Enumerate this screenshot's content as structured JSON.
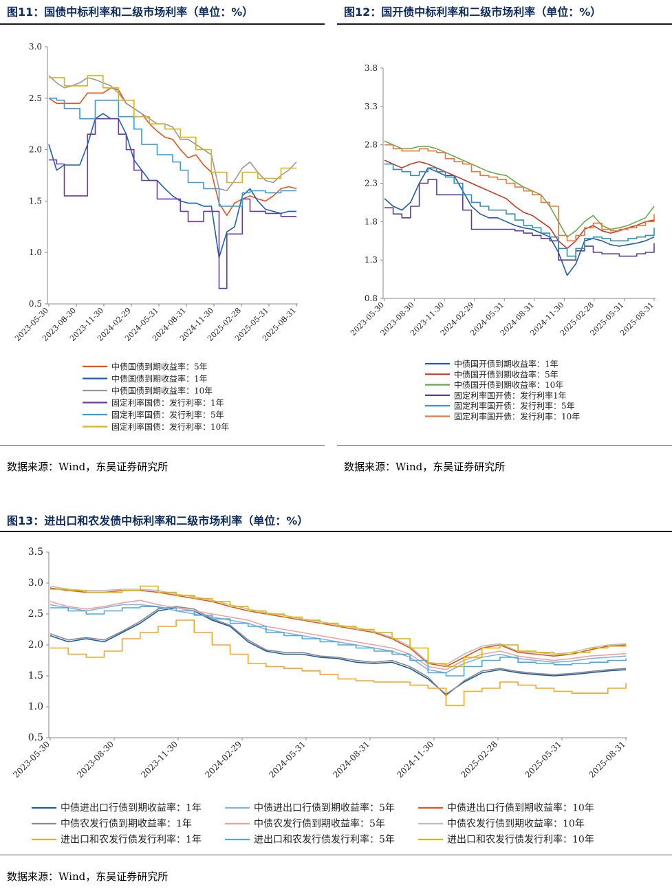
{
  "figures": [
    {
      "id": "fig11",
      "title": "图11：国债中标利率和二级市场利率（单位：%）",
      "source": "数据来源：Wind，东吴证券研究所",
      "chart_data": {
        "type": "line",
        "x_ticks": [
          "2023-05-30",
          "2023-08-30",
          "2023-11-30",
          "2024-02-29",
          "2024-05-31",
          "2024-08-31",
          "2024-11-30",
          "2025-02-28",
          "2025-05-31",
          "2025-08-31"
        ],
        "ylim": [
          0.5,
          3.0
        ],
        "y_ticks": [
          0.5,
          1.0,
          1.5,
          2.0,
          2.5,
          3.0
        ],
        "y_tick_labels": [
          "0.5",
          "1.0",
          "1.5",
          "2.0",
          "2.5",
          "3.0"
        ],
        "series": [
          {
            "name": "中债国债到期收益率：5年",
            "color": "#e2541f",
            "step": false,
            "values": [
              2.5,
              2.45,
              2.45,
              2.45,
              2.45,
              2.55,
              2.55,
              2.55,
              2.6,
              2.58,
              2.45,
              2.4,
              2.35,
              2.25,
              2.18,
              2.12,
              2.1,
              2.0,
              1.92,
              1.95,
              1.85,
              1.78,
              1.48,
              1.36,
              1.48,
              1.52,
              1.55,
              1.52,
              1.5,
              1.55,
              1.62,
              1.64,
              1.62
            ]
          },
          {
            "name": "中债国债到期收益率：1年",
            "color": "#1b5fb0",
            "step": false,
            "values": [
              2.05,
              1.8,
              1.85,
              1.85,
              1.85,
              2.05,
              2.3,
              2.35,
              2.3,
              2.3,
              2.15,
              1.9,
              1.8,
              1.7,
              1.7,
              1.62,
              1.55,
              1.5,
              1.48,
              1.48,
              1.45,
              1.45,
              0.95,
              1.2,
              1.25,
              1.55,
              1.62,
              1.5,
              1.42,
              1.4,
              1.38,
              1.4,
              1.4
            ]
          },
          {
            "name": "中债国债到期收益率：10年",
            "color": "#999999",
            "step": false,
            "values": [
              2.72,
              2.65,
              2.6,
              2.62,
              2.65,
              2.7,
              2.68,
              2.65,
              2.62,
              2.55,
              2.45,
              2.4,
              2.35,
              2.3,
              2.25,
              2.25,
              2.22,
              2.1,
              2.1,
              2.05,
              2.0,
              1.95,
              1.62,
              1.6,
              1.7,
              1.82,
              1.88,
              1.78,
              1.7,
              1.68,
              1.75,
              1.8,
              1.88
            ]
          },
          {
            "name": "固定利率国债：发行利率：1年",
            "color": "#6b3aa0",
            "step": true,
            "values": [
              1.9,
              1.86,
              1.55,
              1.55,
              1.55,
              2.15,
              2.3,
              2.3,
              2.3,
              2.15,
              2.0,
              1.8,
              1.7,
              1.7,
              1.52,
              1.52,
              1.52,
              1.4,
              1.3,
              1.3,
              1.4,
              1.4,
              0.65,
              1.18,
              1.18,
              1.52,
              1.4,
              1.4,
              1.38,
              1.38,
              1.35,
              1.35,
              1.35
            ]
          },
          {
            "name": "固定利率国债：发行利率：5年",
            "color": "#3b9ad8",
            "step": true,
            "values": [
              2.5,
              2.48,
              2.4,
              2.4,
              2.3,
              2.3,
              2.48,
              2.48,
              2.48,
              2.32,
              2.32,
              2.2,
              2.05,
              2.05,
              1.95,
              1.95,
              1.88,
              1.8,
              1.68,
              1.68,
              1.62,
              1.62,
              1.45,
              1.45,
              1.45,
              1.58,
              1.6,
              1.6,
              1.58,
              1.58,
              1.6,
              1.6,
              1.6
            ]
          },
          {
            "name": "固定利率国债：发行利率：10年",
            "color": "#d6b417",
            "step": true,
            "values": [
              2.7,
              2.7,
              2.62,
              2.62,
              2.62,
              2.72,
              2.72,
              2.6,
              2.6,
              2.48,
              2.48,
              2.32,
              2.32,
              2.25,
              2.25,
              2.2,
              2.2,
              2.12,
              2.12,
              2.0,
              2.0,
              1.78,
              1.78,
              1.68,
              1.68,
              1.78,
              1.78,
              1.72,
              1.72,
              1.72,
              1.82,
              1.82,
              1.82
            ]
          }
        ]
      }
    },
    {
      "id": "fig12",
      "title": "图12：国开债中标利率和二级市场利率（单位：%）",
      "source": "数据来源：Wind，东吴证券研究所",
      "chart_data": {
        "type": "line",
        "x_ticks": [
          "2023-05-30",
          "2023-08-30",
          "2023-11-30",
          "2024-02-29",
          "2024-05-31",
          "2024-08-31",
          "2024-11-30",
          "2025-02-28",
          "2025-05-31",
          "2025-08-31"
        ],
        "ylim": [
          0.8,
          3.8
        ],
        "y_ticks": [
          0.8,
          1.3,
          1.8,
          2.3,
          2.8,
          3.3,
          3.8
        ],
        "y_tick_labels": [
          "0.8",
          "1.3",
          "1.8",
          "2.3",
          "2.8",
          "3.3",
          "3.8"
        ],
        "series": [
          {
            "name": "中债国开债到期收益率：1年",
            "color": "#1f5b9e",
            "step": false,
            "values": [
              2.1,
              2.0,
              1.95,
              2.05,
              2.3,
              2.5,
              2.45,
              2.4,
              2.4,
              2.2,
              2.0,
              1.9,
              1.85,
              1.85,
              1.8,
              1.75,
              1.72,
              1.7,
              1.65,
              1.6,
              1.4,
              1.1,
              1.25,
              1.55,
              1.58,
              1.55,
              1.5,
              1.48,
              1.5,
              1.52,
              1.55,
              1.6
            ]
          },
          {
            "name": "中债国开债到期收益率：5年",
            "color": "#c0392b",
            "step": false,
            "values": [
              2.6,
              2.55,
              2.5,
              2.55,
              2.58,
              2.55,
              2.5,
              2.45,
              2.4,
              2.35,
              2.3,
              2.25,
              2.2,
              2.15,
              2.1,
              2.0,
              1.92,
              1.88,
              1.8,
              1.72,
              1.55,
              1.45,
              1.55,
              1.7,
              1.75,
              1.68,
              1.65,
              1.68,
              1.72,
              1.75,
              1.8,
              1.82
            ]
          },
          {
            "name": "中债国开债到期收益率：10年",
            "color": "#6aa84f",
            "step": false,
            "values": [
              2.85,
              2.8,
              2.75,
              2.75,
              2.78,
              2.78,
              2.75,
              2.7,
              2.65,
              2.6,
              2.55,
              2.5,
              2.45,
              2.42,
              2.4,
              2.32,
              2.25,
              2.2,
              2.15,
              2.0,
              1.8,
              1.6,
              1.68,
              1.8,
              1.88,
              1.75,
              1.7,
              1.72,
              1.75,
              1.8,
              1.85,
              2.0
            ]
          },
          {
            "name": "固定利率国开债：发行利率1年",
            "color": "#5b3e91",
            "step": true,
            "values": [
              1.98,
              1.9,
              1.85,
              2.0,
              2.3,
              2.35,
              2.15,
              2.15,
              2.15,
              1.95,
              1.7,
              1.7,
              1.7,
              1.7,
              1.7,
              1.68,
              1.65,
              1.62,
              1.58,
              1.55,
              1.3,
              1.3,
              1.42,
              1.48,
              1.4,
              1.38,
              1.38,
              1.35,
              1.35,
              1.38,
              1.4,
              1.52
            ]
          },
          {
            "name": "固定利率国开债：发行利率：5年",
            "color": "#2f8fb5",
            "step": true,
            "values": [
              2.55,
              2.48,
              2.45,
              2.4,
              2.45,
              2.5,
              2.45,
              2.38,
              2.3,
              2.15,
              2.05,
              2.0,
              1.95,
              1.95,
              1.9,
              1.82,
              1.75,
              1.72,
              1.65,
              1.6,
              1.45,
              1.35,
              1.45,
              1.58,
              1.6,
              1.58,
              1.55,
              1.55,
              1.58,
              1.6,
              1.62,
              1.72
            ]
          },
          {
            "name": "固定利率国开债：发行利率：10年",
            "color": "#e8763a",
            "step": true,
            "values": [
              2.8,
              2.75,
              2.72,
              2.72,
              2.75,
              2.72,
              2.7,
              2.62,
              2.58,
              2.55,
              2.45,
              2.4,
              2.38,
              2.35,
              2.3,
              2.25,
              2.2,
              2.15,
              2.05,
              2.0,
              1.62,
              1.55,
              1.62,
              1.72,
              1.78,
              1.7,
              1.68,
              1.7,
              1.72,
              1.75,
              1.8,
              1.9
            ]
          }
        ]
      }
    },
    {
      "id": "fig13",
      "title": "图13：进出口和农发债中标利率和二级市场利率（单位：%）",
      "source": "数据来源：Wind，东吴证券研究所",
      "chart_data": {
        "type": "line",
        "x_ticks": [
          "2023-05-30",
          "2023-08-30",
          "2023-11-30",
          "2024-02-29",
          "2024-05-31",
          "2024-08-31",
          "2024-11-30",
          "2025-02-28",
          "2025-05-31",
          "2025-08-31"
        ],
        "ylim": [
          0.5,
          3.5
        ],
        "y_ticks": [
          0.5,
          1.0,
          1.5,
          2.0,
          2.5,
          3.0,
          3.5
        ],
        "y_tick_labels": [
          "0.5",
          "1.0",
          "1.5",
          "2.0",
          "2.5",
          "3.0",
          "3.5"
        ],
        "series": [
          {
            "name": "中债进出口行债到期收益率：1年",
            "color": "#1f5b9e",
            "step": false,
            "values": [
              2.15,
              2.05,
              2.1,
              2.05,
              2.2,
              2.35,
              2.55,
              2.6,
              2.55,
              2.4,
              2.3,
              2.05,
              1.9,
              1.85,
              1.85,
              1.8,
              1.78,
              1.72,
              1.7,
              1.72,
              1.62,
              1.45,
              1.2,
              1.4,
              1.55,
              1.6,
              1.55,
              1.52,
              1.5,
              1.52,
              1.55,
              1.58,
              1.6
            ]
          },
          {
            "name": "中债进出口行债到期收益率：5年",
            "color": "#7fb2e0",
            "step": false,
            "values": [
              2.65,
              2.6,
              2.55,
              2.6,
              2.65,
              2.65,
              2.62,
              2.55,
              2.5,
              2.45,
              2.4,
              2.35,
              2.25,
              2.2,
              2.15,
              2.1,
              2.05,
              2.0,
              1.95,
              1.9,
              1.8,
              1.6,
              1.55,
              1.7,
              1.8,
              1.85,
              1.78,
              1.75,
              1.72,
              1.74,
              1.78,
              1.8,
              1.82
            ]
          },
          {
            "name": "中债进出口行债到期收益率：10年",
            "color": "#e2541f",
            "step": false,
            "values": [
              2.92,
              2.88,
              2.85,
              2.85,
              2.88,
              2.88,
              2.85,
              2.8,
              2.75,
              2.7,
              2.62,
              2.55,
              2.5,
              2.45,
              2.4,
              2.35,
              2.3,
              2.25,
              2.2,
              2.1,
              1.95,
              1.7,
              1.65,
              1.8,
              1.95,
              2.0,
              1.88,
              1.85,
              1.82,
              1.85,
              1.92,
              1.98,
              2.0
            ]
          },
          {
            "name": "中债农发行债到期收益率：1年",
            "color": "#8a8a8a",
            "step": false,
            "values": [
              2.18,
              2.08,
              2.12,
              2.08,
              2.22,
              2.38,
              2.58,
              2.62,
              2.58,
              2.42,
              2.32,
              2.08,
              1.92,
              1.88,
              1.88,
              1.82,
              1.8,
              1.75,
              1.72,
              1.75,
              1.65,
              1.48,
              1.18,
              1.42,
              1.58,
              1.62,
              1.57,
              1.54,
              1.52,
              1.54,
              1.57,
              1.6,
              1.62
            ]
          },
          {
            "name": "中债农发行债到期收益率：5年",
            "color": "#f2a19a",
            "step": false,
            "values": [
              2.7,
              2.62,
              2.58,
              2.62,
              2.68,
              2.72,
              2.65,
              2.6,
              2.55,
              2.5,
              2.45,
              2.4,
              2.3,
              2.25,
              2.2,
              2.15,
              2.1,
              2.05,
              2.0,
              1.95,
              1.85,
              1.65,
              1.6,
              1.75,
              1.85,
              1.9,
              1.82,
              1.78,
              1.75,
              1.78,
              1.82,
              1.84,
              1.86
            ]
          },
          {
            "name": "中债农发行债到期收益率：10年",
            "color": "#bdbdbd",
            "step": false,
            "values": [
              2.95,
              2.9,
              2.88,
              2.88,
              2.9,
              2.9,
              2.88,
              2.82,
              2.78,
              2.72,
              2.65,
              2.58,
              2.52,
              2.48,
              2.42,
              2.38,
              2.32,
              2.28,
              2.22,
              2.12,
              1.98,
              1.72,
              1.68,
              1.85,
              1.98,
              2.02,
              1.9,
              1.88,
              1.85,
              1.88,
              1.95,
              2.0,
              2.02
            ]
          },
          {
            "name": "进出口和农发行债发行利率：1年",
            "color": "#f5a623",
            "step": true,
            "values": [
              1.95,
              1.85,
              1.8,
              1.9,
              2.1,
              2.2,
              2.3,
              2.4,
              2.2,
              2.0,
              1.85,
              1.7,
              1.65,
              1.62,
              1.58,
              1.52,
              1.45,
              1.42,
              1.4,
              1.4,
              1.35,
              1.3,
              1.02,
              1.25,
              1.3,
              1.4,
              1.35,
              1.3,
              1.25,
              1.22,
              1.22,
              1.3,
              1.38
            ]
          },
          {
            "name": "进出口和农发行债发行利率：5年",
            "color": "#4aa8e0",
            "step": true,
            "values": [
              2.6,
              2.55,
              2.5,
              2.55,
              2.6,
              2.62,
              2.6,
              2.55,
              2.48,
              2.42,
              2.35,
              2.3,
              2.2,
              2.15,
              2.1,
              2.05,
              2.0,
              1.95,
              1.9,
              1.85,
              1.75,
              1.55,
              1.5,
              1.65,
              1.75,
              1.8,
              1.72,
              1.7,
              1.68,
              1.7,
              1.72,
              1.75,
              1.78
            ]
          },
          {
            "name": "进出口和农发行债发行利率：10年",
            "color": "#d9b600",
            "step": true,
            "values": [
              2.9,
              2.88,
              2.85,
              2.85,
              2.88,
              2.95,
              2.85,
              2.8,
              2.75,
              2.7,
              2.62,
              2.55,
              2.5,
              2.45,
              2.4,
              2.35,
              2.3,
              2.25,
              2.2,
              2.1,
              1.95,
              1.7,
              1.65,
              1.8,
              1.95,
              2.0,
              1.9,
              1.88,
              1.85,
              1.88,
              1.95,
              1.98,
              2.0
            ]
          }
        ]
      }
    }
  ]
}
